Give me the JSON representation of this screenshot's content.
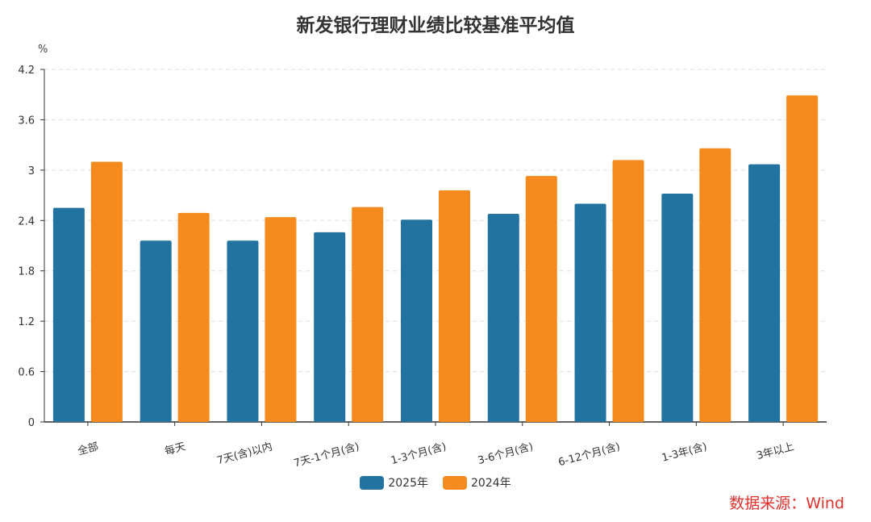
{
  "title": "新发银行理财业绩比较基准平均值",
  "unit_label": "%",
  "source_label": "数据来源：Wind",
  "colors": {
    "series_2025": "#22739f",
    "series_2024": "#f58a1e",
    "grid": "#dddddd",
    "axis": "#333333"
  },
  "chart_data": {
    "type": "bar",
    "categories": [
      "全部",
      "每天",
      "7天(含)以内",
      "7天-1个月(含)",
      "1-3个月(含)",
      "3-6个月(含)",
      "6-12个月(含)",
      "1-3年(含)",
      "3年以上"
    ],
    "series": [
      {
        "name": "2025年",
        "values": [
          2.55,
          2.16,
          2.16,
          2.26,
          2.41,
          2.48,
          2.6,
          2.72,
          3.07
        ]
      },
      {
        "name": "2024年",
        "values": [
          3.1,
          2.49,
          2.44,
          2.56,
          2.76,
          2.93,
          3.12,
          3.26,
          3.89
        ]
      }
    ],
    "ylim": [
      0,
      4.2
    ],
    "yticks": [
      "0",
      "0.6",
      "1.2",
      "1.8",
      "2.4",
      "3",
      "3.6",
      "4.2"
    ],
    "grid": true,
    "legend_position": "bottom"
  }
}
